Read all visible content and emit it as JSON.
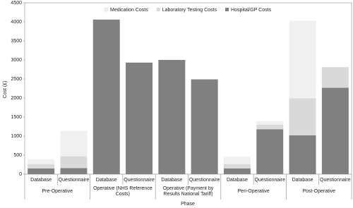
{
  "chart_data": {
    "type": "stacked-bar",
    "y_label": "Cost (£)",
    "x_label": "Phase",
    "categories": [
      "Database",
      "Questionnaire",
      "Database",
      "Questionnaire",
      "Database",
      "Questionnaire",
      "Database",
      "Questionnaire",
      "Database",
      "Questionnaire"
    ],
    "groups": [
      "Pre-Operative",
      "Operative (NHS Reference Costs)",
      "Operative (Payment by Results National Tariff)",
      "Peri-Operative",
      "Post-Operative"
    ],
    "series": [
      {
        "name": "Medication Costs",
        "color": "#f0f0f0",
        "values": [
          130,
          670,
          0,
          0,
          0,
          0,
          200,
          90,
          2040,
          0
        ]
      },
      {
        "name": "Laboratory Testing Costs",
        "color": "#d9d9d9",
        "values": [
          110,
          310,
          0,
          0,
          0,
          0,
          110,
          120,
          970,
          540
        ]
      },
      {
        "name": "Hospital/GP Costs",
        "color": "#808080",
        "values": [
          150,
          160,
          4060,
          2930,
          3000,
          2490,
          150,
          1180,
          1020,
          2270
        ]
      }
    ],
    "ylim": [
      0,
      4500
    ],
    "yticks": [
      0,
      500,
      1000,
      1500,
      2000,
      2500,
      3000,
      3500,
      4000,
      4500
    ]
  }
}
